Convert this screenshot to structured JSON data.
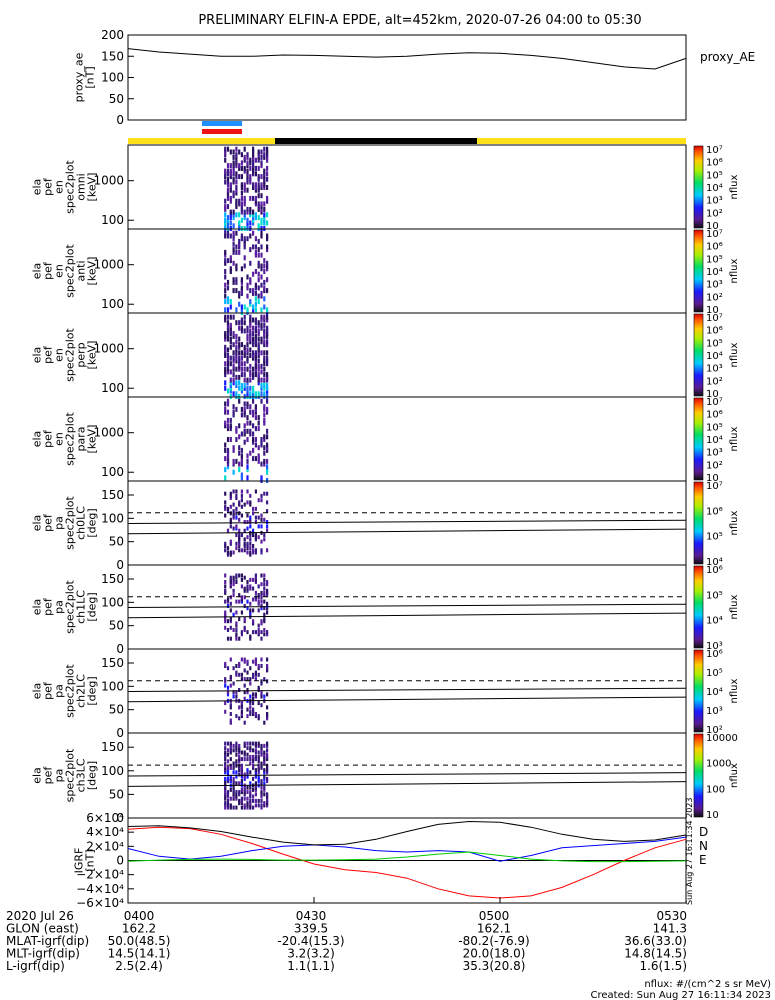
{
  "chart_data": {
    "type": "heatmap",
    "title": "PRELIMINARY ELFIN-A EPDE, alt=452km, 2020-07-26 04:00 to 05:30",
    "panels": [
      {
        "id": "proxy_ae",
        "type": "line",
        "ylabel_lines": [
          "proxy_ae",
          "[nT]"
        ],
        "ylim": [
          0,
          200
        ],
        "yticks": [
          "0",
          "50",
          "100",
          "150",
          "200"
        ],
        "legend": "proxy_AE",
        "x_minutes": [
          0,
          5,
          10,
          15,
          20,
          25,
          30,
          35,
          40,
          45,
          50,
          55,
          60,
          65,
          70,
          75,
          80,
          85,
          90
        ],
        "values": [
          168,
          160,
          155,
          150,
          150,
          153,
          152,
          150,
          148,
          150,
          155,
          158,
          157,
          152,
          145,
          135,
          125,
          120,
          145
        ]
      },
      {
        "id": "omni",
        "type": "heatmap",
        "ylabel_lines": [
          "ela",
          "pef",
          "en",
          "spec2plot",
          "omni",
          "[keV]"
        ],
        "ylim": [
          60,
          8000
        ],
        "yscale": "log",
        "yticks": [
          "100",
          "1000"
        ],
        "colorbar_label": "nflux",
        "colorbar_ticks": [
          "10",
          "10²",
          "10³",
          "10⁴",
          "10⁵",
          "10⁶",
          "10⁷"
        ]
      },
      {
        "id": "anti",
        "type": "heatmap",
        "ylabel_lines": [
          "ela",
          "pef",
          "en",
          "spec2plot",
          "anti",
          "[keV]"
        ],
        "ylim": [
          60,
          8000
        ],
        "yscale": "log",
        "yticks": [
          "100",
          "1000"
        ],
        "colorbar_label": "nflux",
        "colorbar_ticks": [
          "10",
          "10²",
          "10³",
          "10⁴",
          "10⁵",
          "10⁶",
          "10⁷"
        ]
      },
      {
        "id": "perp",
        "type": "heatmap",
        "ylabel_lines": [
          "ela",
          "pef",
          "en",
          "spec2plot",
          "perp",
          "[keV]"
        ],
        "ylim": [
          60,
          8000
        ],
        "yscale": "log",
        "yticks": [
          "100",
          "1000"
        ],
        "colorbar_label": "nflux",
        "colorbar_ticks": [
          "10",
          "10²",
          "10³",
          "10⁴",
          "10⁵",
          "10⁶",
          "10⁷"
        ]
      },
      {
        "id": "para",
        "type": "heatmap",
        "ylabel_lines": [
          "ela",
          "pef",
          "en",
          "spec2plot",
          "para",
          "[keV]"
        ],
        "ylim": [
          60,
          8000
        ],
        "yscale": "log",
        "yticks": [
          "100",
          "1000"
        ],
        "colorbar_label": "nflux",
        "colorbar_ticks": [
          "10",
          "10²",
          "10³",
          "10⁴",
          "10⁵",
          "10⁶",
          "10⁷"
        ]
      },
      {
        "id": "ch0LC",
        "type": "heatmap",
        "ylabel_lines": [
          "ela",
          "pef",
          "pa",
          "spec2plot",
          "ch0LC",
          "[deg]"
        ],
        "ylim": [
          0,
          180
        ],
        "yticks": [
          "0",
          "50",
          "100",
          "150"
        ],
        "colorbar_label": "nflux",
        "colorbar_ticks": [
          "10⁴",
          "10⁵",
          "10⁶",
          "10⁷"
        ]
      },
      {
        "id": "ch1LC",
        "type": "heatmap",
        "ylabel_lines": [
          "ela",
          "pef",
          "pa",
          "spec2plot",
          "ch1LC",
          "[deg]"
        ],
        "ylim": [
          0,
          180
        ],
        "yticks": [
          "0",
          "50",
          "100",
          "150"
        ],
        "colorbar_label": "nflux",
        "colorbar_ticks": [
          "10³",
          "10⁴",
          "10⁵",
          "10⁶"
        ]
      },
      {
        "id": "ch2LC",
        "type": "heatmap",
        "ylabel_lines": [
          "ela",
          "pef",
          "pa",
          "spec2plot",
          "ch2LC",
          "[deg]"
        ],
        "ylim": [
          0,
          180
        ],
        "yticks": [
          "0",
          "50",
          "100",
          "150"
        ],
        "colorbar_label": "nflux",
        "colorbar_ticks": [
          "10²",
          "10³",
          "10⁴",
          "10⁵",
          "10⁶"
        ]
      },
      {
        "id": "ch3LC",
        "type": "heatmap",
        "ylabel_lines": [
          "ela",
          "pef",
          "pa",
          "spec2plot",
          "ch3LC",
          "[deg]"
        ],
        "ylim": [
          0,
          180
        ],
        "yticks": [
          "0",
          "50",
          "100",
          "150"
        ],
        "colorbar_label": "nflux",
        "colorbar_ticks": [
          "10",
          "100",
          "1000",
          "10000"
        ]
      },
      {
        "id": "igrf",
        "type": "line",
        "ylabel_lines": [
          "IGRF",
          "[nT]"
        ],
        "ylim": [
          -60000,
          60000
        ],
        "yticks": [
          "−6×10⁴",
          "−4×10⁴",
          "−2×10⁴",
          "0",
          "2×10⁴",
          "4×10⁴",
          "6×10⁴"
        ],
        "legend": [
          "D",
          "N",
          "E"
        ],
        "series": [
          {
            "name": "D",
            "color": "#ff0000",
            "x_minutes": [
              0,
              5,
              10,
              15,
              20,
              25,
              30,
              35,
              40,
              45,
              50,
              55,
              60,
              65,
              70,
              75,
              80,
              85,
              90
            ],
            "values": [
              44000,
              47000,
              45000,
              37000,
              24000,
              9000,
              -5000,
              -13000,
              -17000,
              -25000,
              -40000,
              -50000,
              -53000,
              -50000,
              -38000,
              -20000,
              0,
              18000,
              30000
            ]
          },
          {
            "name": "N",
            "color": "#0000ff",
            "x_minutes": [
              0,
              5,
              10,
              15,
              20,
              25,
              30,
              35,
              40,
              45,
              50,
              55,
              60,
              65,
              70,
              75,
              80,
              85,
              90
            ],
            "values": [
              17000,
              6000,
              2000,
              6000,
              14000,
              20000,
              22000,
              19000,
              14000,
              12000,
              14000,
              12000,
              -1000,
              7000,
              18000,
              21000,
              24000,
              27000,
              33000
            ]
          },
          {
            "name": "E",
            "color": "#00cc00",
            "x_minutes": [
              0,
              5,
              10,
              15,
              20,
              25,
              30,
              35,
              40,
              45,
              50,
              55,
              60,
              65,
              70,
              75,
              80,
              85,
              90
            ],
            "values": [
              -1000,
              500,
              1500,
              2000,
              1500,
              500,
              500,
              1000,
              2000,
              5000,
              9000,
              12000,
              7000,
              2000,
              -500,
              -1500,
              -1500,
              -1000,
              -500
            ]
          },
          {
            "name": "",
            "color": "#000000",
            "x_minutes": [
              0,
              5,
              10,
              15,
              20,
              25,
              30,
              35,
              40,
              45,
              50,
              55,
              60,
              65,
              70,
              75,
              80,
              85,
              90
            ],
            "values": [
              48000,
              49000,
              46000,
              41000,
              33000,
              26000,
              22000,
              23000,
              30000,
              41000,
              51000,
              55000,
              54000,
              47000,
              37000,
              30000,
              27000,
              29000,
              36000
            ]
          }
        ]
      }
    ],
    "x_ticks": [
      "0400",
      "0430",
      "0500",
      "0530"
    ],
    "x_range_minutes": [
      0,
      90
    ]
  },
  "orbit_table": {
    "rows": [
      {
        "label": "2020 Jul 26",
        "cells": [
          "0400",
          "0430",
          "0500",
          "0530"
        ]
      },
      {
        "label": "GLON (east)",
        "cells": [
          "162.2",
          "339.5",
          "162.1",
          "141.3"
        ]
      },
      {
        "label": "MLAT-igrf(dip)",
        "cells": [
          "50.0(48.5)",
          "-20.4(15.3)",
          "-80.2(-76.9)",
          "36.6(33.0)"
        ]
      },
      {
        "label": "MLT-igrf(dip)",
        "cells": [
          "14.5(14.1)",
          "3.2(3.2)",
          "20.0(18.0)",
          "14.8(14.5)"
        ]
      },
      {
        "label": "L-igrf(dip)",
        "cells": [
          "2.5(2.4)",
          "1.1(1.1)",
          "35.3(20.8)",
          "1.6(1.5)"
        ]
      }
    ]
  },
  "footer": {
    "units": "nflux: #/(cm^2 s sr MeV)",
    "created": "Created: Sun Aug 27 16:11:34 2023",
    "side_stamp": "Sun Aug 27 16:11:34 2023"
  },
  "colors": {
    "day": "#ffe11a",
    "night": "#000000",
    "bar_blue": "#1e90ff",
    "bar_red": "#ee1111"
  }
}
